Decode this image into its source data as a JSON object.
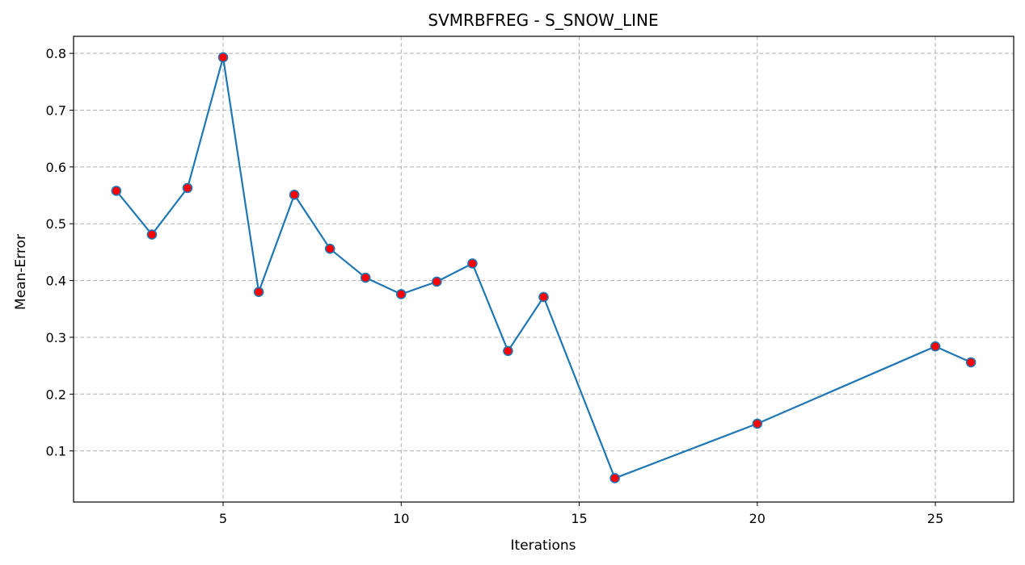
{
  "chart_data": {
    "type": "line",
    "title": "SVMRBFREG - S_SNOW_LINE",
    "xlabel": "Iterations",
    "ylabel": "Mean-Error",
    "xlim": [
      0.8,
      27.2
    ],
    "ylim": [
      0.01,
      0.83
    ],
    "xticks": [
      5,
      10,
      15,
      20,
      25
    ],
    "yticks": [
      0.1,
      0.2,
      0.3,
      0.4,
      0.5,
      0.6,
      0.7,
      0.8
    ],
    "grid": true,
    "series": [
      {
        "x": [
          2,
          3,
          4,
          5,
          6,
          7,
          8,
          9,
          10,
          11,
          12,
          13,
          14,
          16,
          20,
          25,
          26
        ],
        "y": [
          0.558,
          0.481,
          0.563,
          0.793,
          0.38,
          0.551,
          0.456,
          0.405,
          0.376,
          0.398,
          0.43,
          0.276,
          0.371,
          0.052,
          0.148,
          0.284,
          0.256
        ],
        "line_color": "#1f77b4",
        "marker_face_color": "#ff0000",
        "marker_edge_color": "#1f77b4"
      }
    ]
  }
}
